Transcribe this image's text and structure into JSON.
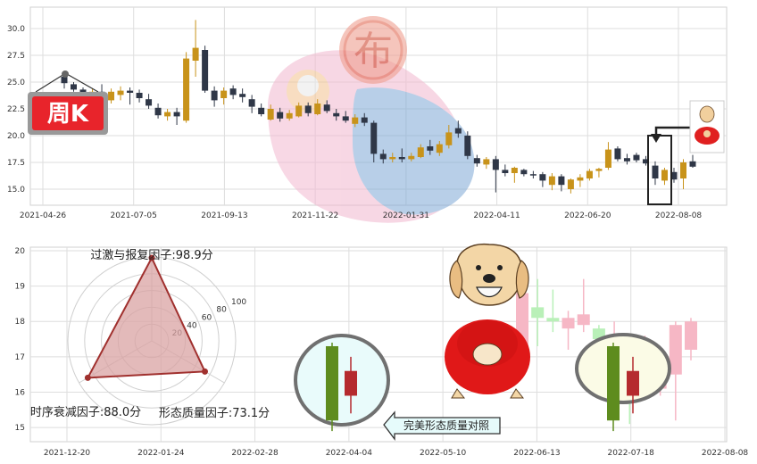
{
  "badge": {
    "label": "周K"
  },
  "stamp": {
    "text": "布"
  },
  "colors": {
    "up": "#c8931a",
    "down": "#2f3747",
    "radar_fill": "#d9a3a3",
    "radar_line": "#a0302e",
    "grid": "#dedede",
    "badge_bg": "#e8242b",
    "pale_up": "#f6b7c5",
    "pale_down": "#b9f0b8",
    "candle_green": "#5e8c1e",
    "candle_red": "#b52a2e"
  },
  "chart_data": [
    {
      "type": "candlestick",
      "x_ticks": [
        "2021-04-26",
        "2021-07-05",
        "2021-09-13",
        "2021-11-22",
        "2022-01-31",
        "2022-04-11",
        "2022-06-20",
        "2022-08-08"
      ],
      "y_ticks": [
        "15.0",
        "17.5",
        "20.0",
        "22.5",
        "25.0",
        "27.5",
        "30.0"
      ],
      "ylim": [
        13.5,
        32.0
      ],
      "candles": [
        [
          25.5,
          25.8,
          24.4,
          24.9
        ],
        [
          24.8,
          25.0,
          24.1,
          24.3
        ],
        [
          24.3,
          24.5,
          23.6,
          23.9
        ],
        [
          23.5,
          24.4,
          23.2,
          24.1
        ],
        [
          24.1,
          24.8,
          23.4,
          23.7
        ],
        [
          23.3,
          24.4,
          23.0,
          24.1
        ],
        [
          23.8,
          24.6,
          23.3,
          24.2
        ],
        [
          24.2,
          24.5,
          22.9,
          24.0
        ],
        [
          24.0,
          24.3,
          23.1,
          23.5
        ],
        [
          23.4,
          23.9,
          22.5,
          22.8
        ],
        [
          22.6,
          23.0,
          21.6,
          21.9
        ],
        [
          21.8,
          22.5,
          21.4,
          22.2
        ],
        [
          22.2,
          22.6,
          21.0,
          21.8
        ],
        [
          21.4,
          27.8,
          21.2,
          27.2
        ],
        [
          27.0,
          30.8,
          25.5,
          28.2
        ],
        [
          28.0,
          28.4,
          24.0,
          24.2
        ],
        [
          24.2,
          24.6,
          22.7,
          23.3
        ],
        [
          23.5,
          24.5,
          22.9,
          24.2
        ],
        [
          24.4,
          24.7,
          23.4,
          23.8
        ],
        [
          23.9,
          24.4,
          23.1,
          23.6
        ],
        [
          23.4,
          23.8,
          22.1,
          22.7
        ],
        [
          22.6,
          23.0,
          21.8,
          22.0
        ],
        [
          21.5,
          22.9,
          21.4,
          22.5
        ],
        [
          22.2,
          22.6,
          21.3,
          21.6
        ],
        [
          21.6,
          22.4,
          21.4,
          22.1
        ],
        [
          21.8,
          23.1,
          21.7,
          22.8
        ],
        [
          22.8,
          23.1,
          21.8,
          22.1
        ],
        [
          22.0,
          23.4,
          21.9,
          23.0
        ],
        [
          22.9,
          23.3,
          22.1,
          22.3
        ],
        [
          22.1,
          22.5,
          21.4,
          21.8
        ],
        [
          21.8,
          22.3,
          21.2,
          21.4
        ],
        [
          21.1,
          22.0,
          20.8,
          21.7
        ],
        [
          21.7,
          22.1,
          20.9,
          21.2
        ],
        [
          21.2,
          21.4,
          17.5,
          18.3
        ],
        [
          18.3,
          18.7,
          17.4,
          17.8
        ],
        [
          17.8,
          18.4,
          17.5,
          18.0
        ],
        [
          18.0,
          18.8,
          17.5,
          17.8
        ],
        [
          17.8,
          18.4,
          17.6,
          18.1
        ],
        [
          18.0,
          19.2,
          17.9,
          18.9
        ],
        [
          19.0,
          19.6,
          18.2,
          18.6
        ],
        [
          18.4,
          19.5,
          18.1,
          19.2
        ],
        [
          19.1,
          21.0,
          18.8,
          20.3
        ],
        [
          20.7,
          21.4,
          19.8,
          20.2
        ],
        [
          20.0,
          20.4,
          17.8,
          18.1
        ],
        [
          17.9,
          18.2,
          17.1,
          17.4
        ],
        [
          17.3,
          18.0,
          16.9,
          17.8
        ],
        [
          17.8,
          18.1,
          14.7,
          16.8
        ],
        [
          16.8,
          17.3,
          16.2,
          16.5
        ],
        [
          16.5,
          17.1,
          15.6,
          17.0
        ],
        [
          16.8,
          16.9,
          16.2,
          16.4
        ],
        [
          16.4,
          16.7,
          16.0,
          16.3
        ],
        [
          16.4,
          16.6,
          15.2,
          15.8
        ],
        [
          15.4,
          16.5,
          14.9,
          16.2
        ],
        [
          16.2,
          16.4,
          14.8,
          15.4
        ],
        [
          15.0,
          16.0,
          14.6,
          15.9
        ],
        [
          15.8,
          16.4,
          15.2,
          16.1
        ],
        [
          16.0,
          16.9,
          15.8,
          16.7
        ],
        [
          16.7,
          17.0,
          16.1,
          16.9
        ],
        [
          17.0,
          19.4,
          16.8,
          18.7
        ],
        [
          18.8,
          19.0,
          17.6,
          17.8
        ],
        [
          17.9,
          18.3,
          17.3,
          17.6
        ],
        [
          18.2,
          18.4,
          17.5,
          17.7
        ],
        [
          17.8,
          18.1,
          17.2,
          17.4
        ],
        [
          17.2,
          17.6,
          15.4,
          16.0
        ],
        [
          15.8,
          17.0,
          15.4,
          16.8
        ],
        [
          16.6,
          17.0,
          15.6,
          15.9
        ],
        [
          16.0,
          17.8,
          15.0,
          17.5
        ],
        [
          17.6,
          18.2,
          17.0,
          17.1
        ]
      ]
    },
    {
      "type": "radar",
      "axes": [
        "过激与报复因子",
        "形态质量因子",
        "时序衰减因子"
      ],
      "values": [
        98.9,
        73.1,
        88.0
      ],
      "labels": [
        "过激与报复因子:98.9分",
        "形态质量因子:73.1分",
        "时序衰减因子:88.0分"
      ],
      "radial_ticks": [
        "20",
        "40",
        "60",
        "80",
        "100"
      ],
      "rmax": 100
    },
    {
      "type": "candlestick",
      "x_ticks": [
        "2021-12-20",
        "2022-01-24",
        "2022-02-28",
        "2022-04-04",
        "2022-05-10",
        "2022-06-13",
        "2022-07-18",
        "2022-08-08"
      ],
      "y_ticks": [
        "15",
        "16",
        "17",
        "18",
        "19",
        "20"
      ],
      "ylim": [
        14.6,
        20.1
      ],
      "highlight_candles": [
        [
          17.3,
          17.4,
          14.9,
          15.2
        ],
        [
          16.6,
          17.0,
          15.4,
          15.9
        ]
      ],
      "pale_candles": [
        [
          17.2,
          18.9,
          16.9,
          18.8
        ],
        [
          18.4,
          19.2,
          17.3,
          18.1
        ],
        [
          18.1,
          18.9,
          17.7,
          18.0
        ],
        [
          17.8,
          18.3,
          17.2,
          18.1
        ],
        [
          17.9,
          19.2,
          17.7,
          18.2
        ],
        [
          17.8,
          17.9,
          17.4,
          17.5
        ],
        [
          17.2,
          18.0,
          17.0,
          17.3
        ],
        [
          17.4,
          17.6,
          15.1,
          16.2
        ],
        [
          16.4,
          17.6,
          16.0,
          16.7
        ],
        [
          16.1,
          17.0,
          15.9,
          16.8
        ],
        [
          16.5,
          18.0,
          15.2,
          17.9
        ],
        [
          17.2,
          18.1,
          16.9,
          18.0
        ]
      ],
      "note": "完美形态质量对照"
    }
  ]
}
